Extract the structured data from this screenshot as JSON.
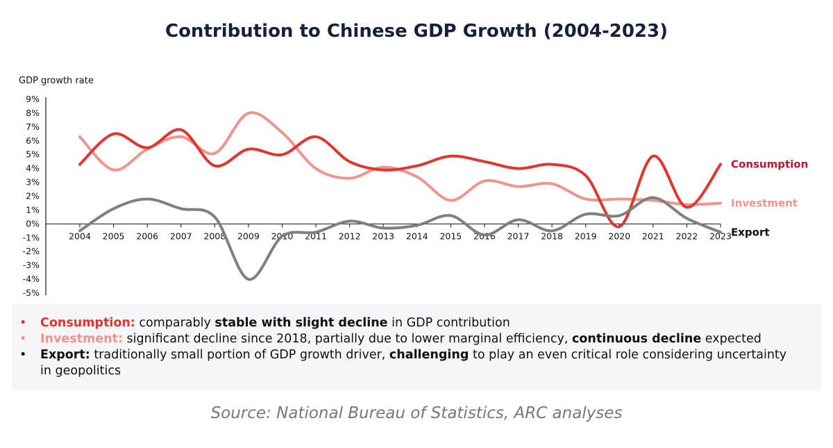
{
  "title": "Contribution to Chinese GDP Growth (2004-2023)",
  "chart_data": {
    "type": "line",
    "ylabel": "GDP growth rate",
    "ylim": [
      -5,
      9
    ],
    "yticks": [
      "9%",
      "8%",
      "7%",
      "6%",
      "5%",
      "4%",
      "3%",
      "2%",
      "1%",
      "0%",
      "-1%",
      "-2%",
      "-3%",
      "-4%",
      "-5%"
    ],
    "ytick_values": [
      9,
      8,
      7,
      6,
      5,
      4,
      3,
      2,
      1,
      0,
      -1,
      -2,
      -3,
      -4,
      -5
    ],
    "categories": [
      "2004",
      "2005",
      "2006",
      "2007",
      "2008",
      "2009",
      "2010",
      "2011",
      "2012",
      "2013",
      "2014",
      "2015",
      "2016",
      "2017",
      "2018",
      "2019",
      "2020",
      "2021",
      "2022",
      "2023"
    ],
    "grid": false,
    "legend": "right, end-of-line labels",
    "series": [
      {
        "name": "Consumption",
        "color": "#e3342f",
        "label_color": "#c8102e",
        "values": [
          4.3,
          6.5,
          5.5,
          6.8,
          4.2,
          5.4,
          5.0,
          6.3,
          4.5,
          3.9,
          4.2,
          4.9,
          4.5,
          4.0,
          4.3,
          3.5,
          -0.2,
          4.9,
          1.2,
          4.3
        ]
      },
      {
        "name": "Investment",
        "color": "#f0948c",
        "label_color": "#f0948c",
        "values": [
          6.3,
          3.9,
          5.4,
          6.3,
          5.1,
          8.0,
          6.6,
          4.0,
          3.3,
          4.1,
          3.4,
          1.7,
          3.1,
          2.7,
          2.9,
          1.8,
          1.8,
          1.7,
          1.4,
          1.5
        ]
      },
      {
        "name": "Export",
        "color": "#7f7f7f",
        "label_color": "#111111",
        "values": [
          -0.5,
          1.1,
          1.8,
          1.1,
          0.5,
          -4.0,
          -0.9,
          -0.6,
          0.2,
          -0.3,
          -0.1,
          0.6,
          -0.8,
          0.3,
          -0.5,
          0.7,
          0.6,
          1.9,
          0.4,
          -0.6
        ]
      }
    ]
  },
  "bullets": [
    {
      "color": "#e3342f",
      "segments": [
        {
          "text": "Consumption:",
          "bold": true,
          "color": "#e3342f"
        },
        {
          "text": " comparably ",
          "bold": false
        },
        {
          "text": "stable with slight decline",
          "bold": true
        },
        {
          "text": " in GDP contribution",
          "bold": false
        }
      ]
    },
    {
      "color": "#f0948c",
      "segments": [
        {
          "text": "Investment:",
          "bold": true,
          "color": "#f0948c"
        },
        {
          "text": " significant decline since 2018, partially due to lower marginal efficiency, ",
          "bold": false
        },
        {
          "text": "continuous decline",
          "bold": true
        },
        {
          "text": " expected",
          "bold": false
        }
      ]
    },
    {
      "color": "#111111",
      "segments": [
        {
          "text": "Export:",
          "bold": true
        },
        {
          "text": " traditionally small portion of GDP growth driver, ",
          "bold": false
        },
        {
          "text": "challenging",
          "bold": true
        },
        {
          "text": " to play an even critical role considering uncertainty in geopolitics",
          "bold": false
        }
      ]
    }
  ],
  "source": "Source: National Bureau of Statistics, ARC analyses"
}
